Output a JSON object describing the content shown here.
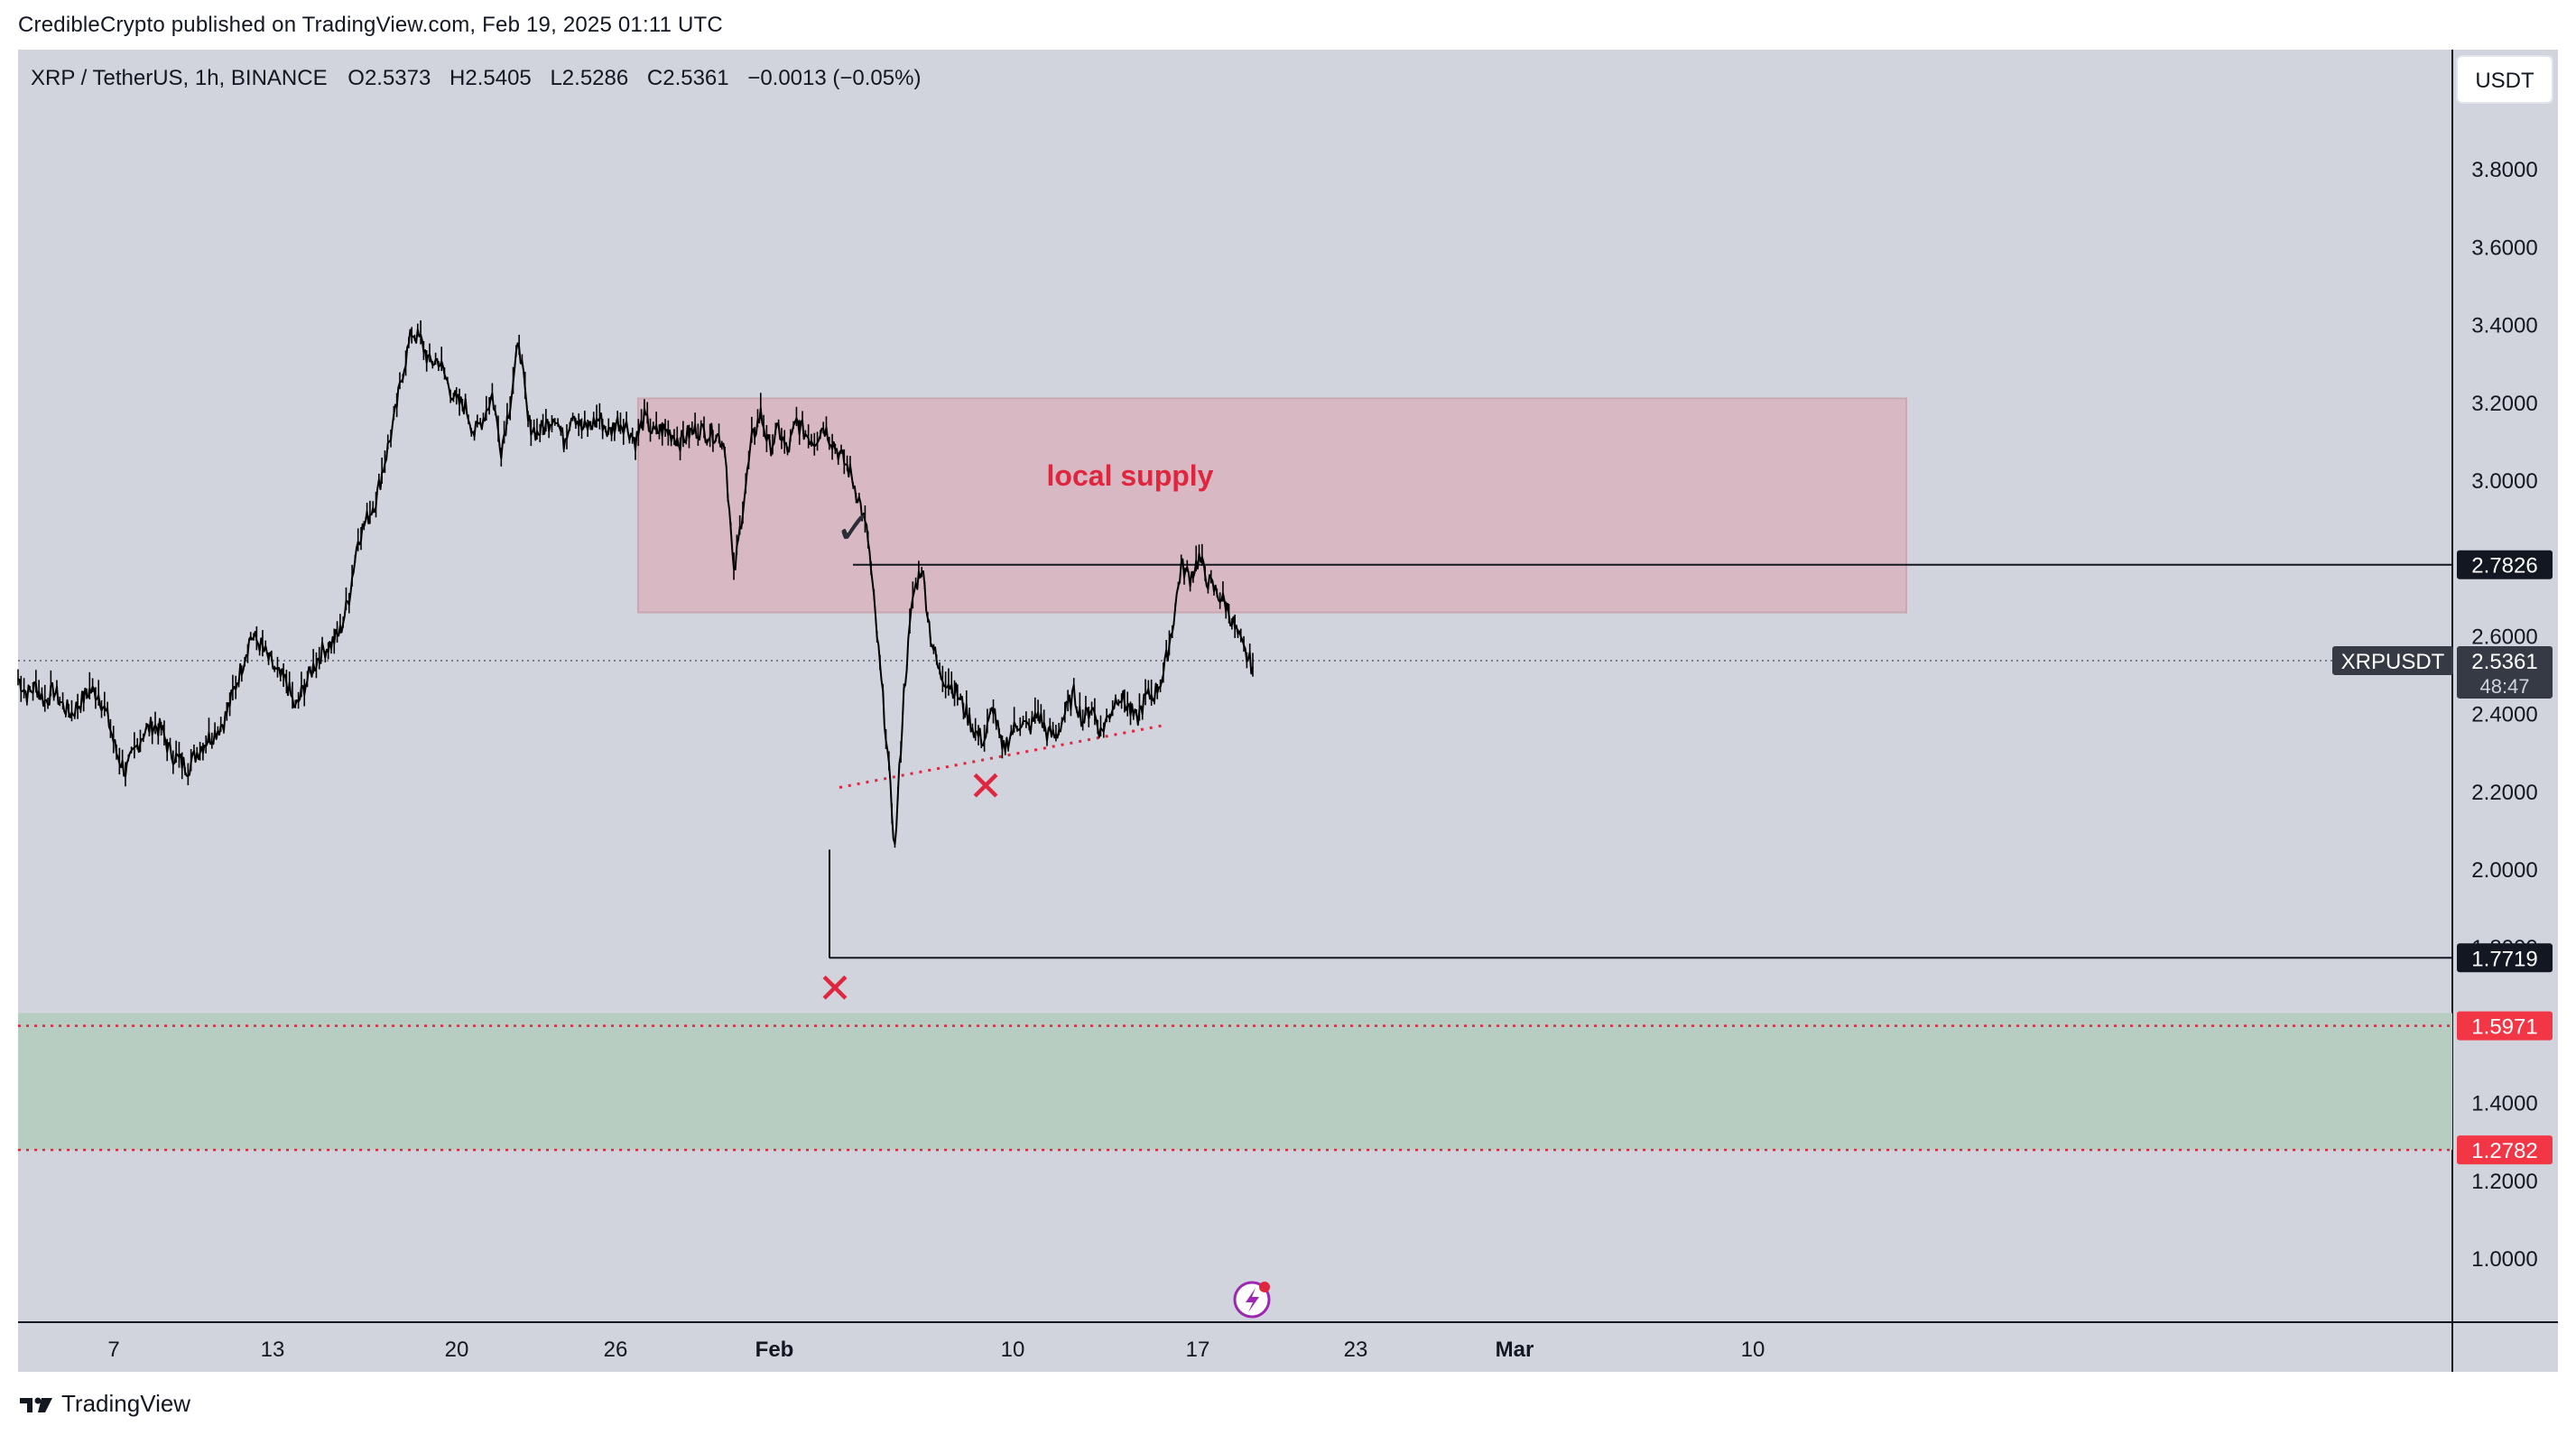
{
  "header": {
    "published_line": "CredibleCrypto published on TradingView.com, Feb 19, 2025 01:11 UTC"
  },
  "legend": {
    "symbol": "XRP / TetherUS, 1h, BINANCE",
    "open_label": "O",
    "open": "2.5373",
    "high_label": "H",
    "high": "2.5405",
    "low_label": "L",
    "low": "2.5286",
    "close_label": "C",
    "close": "2.5361",
    "change": "−0.0013 (−0.05%)"
  },
  "currency_button": "USDT",
  "footer": {
    "brand": "TradingView"
  },
  "colors": {
    "background": "#d1d4dc",
    "supply_zone": "#d8b8c2",
    "demand_zone": "#b8cdc1",
    "red": "#e0263f",
    "candle": "#000000"
  },
  "chart_data": {
    "type": "line",
    "title": "",
    "series": [
      {
        "values": [
          2.49,
          2.45,
          2.47,
          2.43,
          2.46,
          2.42,
          2.4,
          2.43,
          2.46,
          2.45,
          2.39,
          2.3,
          2.25,
          2.3,
          2.35,
          2.37,
          2.36,
          2.3,
          2.28,
          2.26,
          2.3,
          2.33,
          2.35,
          2.38,
          2.45,
          2.52,
          2.6,
          2.58,
          2.54,
          2.5,
          2.48,
          2.41,
          2.47,
          2.52,
          2.56,
          2.58,
          2.61,
          2.7,
          2.85,
          2.9,
          2.95,
          3.05,
          3.15,
          3.28,
          3.38,
          3.36,
          3.3,
          3.31,
          3.25,
          3.2,
          3.19,
          3.12,
          3.16,
          3.22,
          3.08,
          3.2,
          3.36,
          3.15,
          3.12,
          3.14,
          3.17,
          3.1,
          3.18,
          3.13,
          3.14,
          3.16,
          3.12,
          3.15,
          3.14,
          3.1,
          3.16,
          3.12,
          3.13,
          3.12,
          3.1,
          3.12,
          3.13,
          3.12,
          3.12,
          3.09,
          2.75,
          2.93,
          3.1,
          3.17,
          3.08,
          3.13,
          3.07,
          3.15,
          3.12,
          3.1,
          3.14,
          3.1,
          3.06,
          3.02,
          2.95,
          2.85,
          2.6,
          2.35,
          2.05,
          2.45,
          2.7,
          2.78,
          2.6,
          2.5,
          2.48,
          2.45,
          2.4,
          2.35,
          2.33,
          2.42,
          2.3,
          2.35,
          2.38,
          2.36,
          2.4,
          2.35,
          2.34,
          2.4,
          2.45,
          2.38,
          2.42,
          2.35,
          2.4,
          2.45,
          2.42,
          2.38,
          2.44,
          2.45,
          2.5,
          2.62,
          2.78,
          2.75,
          2.8,
          2.74,
          2.71,
          2.68,
          2.62,
          2.56,
          2.52
        ]
      }
    ],
    "x_tick_labels": [
      "7",
      "13",
      "20",
      "26",
      "Feb",
      "10",
      "17",
      "23",
      "Mar",
      "10"
    ],
    "y_tick_labels": [
      "3.8000",
      "3.6000",
      "3.4000",
      "3.2000",
      "3.0000",
      "2.8000",
      "2.6000",
      "2.4000",
      "2.2000",
      "2.0000",
      "1.8000",
      "1.4000",
      "1.2000",
      "1.0000"
    ],
    "ylim": [
      0.85,
      4.1
    ],
    "grid": false,
    "current_price": {
      "symbol": "XRPUSDT",
      "value": 2.5361,
      "label": "2.5361",
      "countdown": "48:47"
    },
    "price_labels": [
      {
        "value": 2.7826,
        "label": "2.7826",
        "style": "black"
      },
      {
        "value": 1.7719,
        "label": "1.7719",
        "style": "black"
      },
      {
        "value": 1.5971,
        "label": "1.5971",
        "style": "red"
      },
      {
        "value": 1.2782,
        "label": "1.2782",
        "style": "red"
      }
    ],
    "zones": [
      {
        "name": "local supply",
        "y_low": 2.66,
        "y_high": 3.21
      },
      {
        "name": "",
        "y_low": 1.2782,
        "y_high": 1.63
      }
    ],
    "annotations": [
      {
        "text": "local supply"
      },
      {
        "symbol": "✓"
      },
      {
        "symbol": "✕"
      },
      {
        "symbol": "✕"
      }
    ]
  }
}
